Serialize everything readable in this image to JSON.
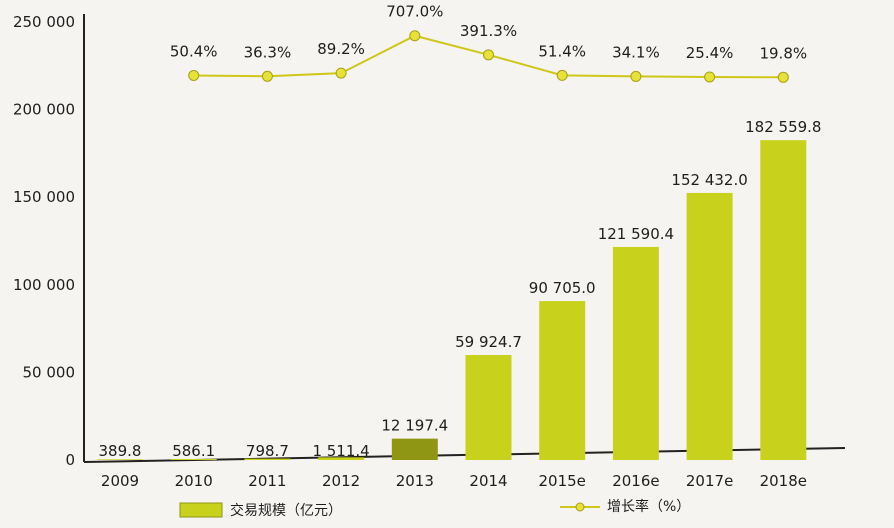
{
  "chart_data": {
    "type": "bar",
    "categories": [
      "2009",
      "2010",
      "2011",
      "2012",
      "2013",
      "2014",
      "2015e",
      "2016e",
      "2017e",
      "2018e"
    ],
    "series": [
      {
        "name": "交易规模（亿元）",
        "type": "bar",
        "values": [
          389.8,
          586.1,
          798.7,
          1511.4,
          12197.4,
          59924.7,
          90705.0,
          121590.4,
          152432.0,
          182559.8
        ],
        "labels": [
          "389.8",
          "586.1",
          "798.7",
          "1 511.4",
          "12 197.4",
          "59 924.7",
          "90 705.0",
          "121 590.4",
          "152 432.0",
          "182 559.8"
        ]
      },
      {
        "name": "增长率（%）",
        "type": "line",
        "values": [
          null,
          50.4,
          36.3,
          89.2,
          707.0,
          391.3,
          51.4,
          34.1,
          25.4,
          19.8
        ],
        "labels": [
          null,
          "50.4%",
          "36.3%",
          "89.2%",
          "707.0%",
          "391.3%",
          "51.4%",
          "34.1%",
          "25.4%",
          "19.8%"
        ]
      }
    ],
    "yticks": [
      "0",
      "50 000",
      "100 000",
      "150 000",
      "200 000",
      "250 000"
    ],
    "ylim": [
      0,
      250000
    ],
    "legend_position": "bottom",
    "colors": {
      "bar": "#c8d21c",
      "bar_dark": "#8f9614",
      "line": "#cfc61a",
      "marker": "#e6e23a"
    }
  }
}
